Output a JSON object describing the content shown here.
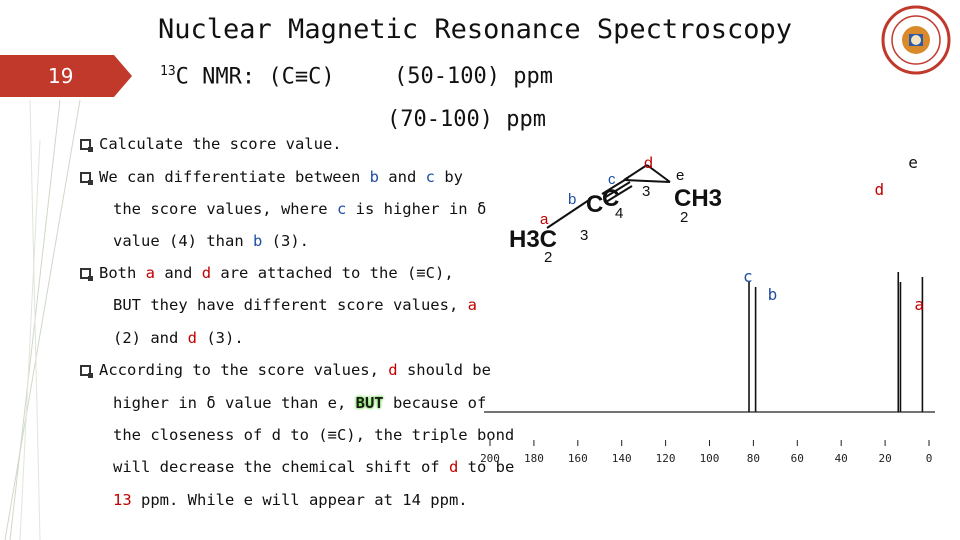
{
  "title": "Nuclear Magnetic Resonance Spectroscopy",
  "slide_number": "19",
  "subtitle": {
    "sup": "13",
    "main": "C NMR: (C≡C)",
    "range1": "(50-100) ppm",
    "range2": "(70-100) ppm"
  },
  "bullets": [
    {
      "text": "Calculate the score value."
    },
    {
      "parts": [
        "We can differentiate between ",
        "b",
        " and ",
        "c",
        " by"
      ],
      "line2": [
        "the score values, where ",
        "c",
        " is higher in δ"
      ],
      "line3": [
        "value (4) than ",
        "b",
        " (3)."
      ]
    },
    {
      "parts": [
        "Both ",
        "a",
        " and ",
        "d",
        " are attached to the (≡C),"
      ],
      "line2": [
        "BUT they have different score values, ",
        "a"
      ],
      "line3": [
        "(2) and ",
        "d",
        " (3)."
      ]
    },
    {
      "parts": [
        "According to the score values, ",
        "d",
        " should be"
      ],
      "line2": [
        "higher in δ value than e, ",
        "BUT",
        " because of"
      ],
      "line3": [
        "the closeness of d to (≡C), the triple bond"
      ],
      "line4": [
        "will decrease the chemical shift of ",
        "d",
        " to be"
      ],
      "line5": [
        "13",
        " ppm. While e will appear at 14 ppm."
      ]
    }
  ],
  "structure": {
    "labels": {
      "a": "a",
      "b": "b",
      "c": "c",
      "d": "d",
      "e": "e"
    },
    "scores": {
      "a": "2",
      "b": "3",
      "c": "4",
      "d": "3",
      "e": "2"
    },
    "groups": {
      "h3c": "H3C",
      "c1": "C",
      "c2": "C",
      "ch2": "C",
      "ch3": "CH3"
    }
  },
  "spectrum_labels": {
    "c": "c",
    "b": "b",
    "a": "a",
    "d": "d",
    "e": "e"
  },
  "chart_data": {
    "type": "line",
    "x_ticks": [
      200,
      180,
      160,
      140,
      120,
      100,
      80,
      60,
      40,
      20,
      0
    ],
    "xlim": [
      200,
      0
    ],
    "peaks": [
      {
        "label": "c",
        "ppm": 82
      },
      {
        "label": "b",
        "ppm": 79
      },
      {
        "label": "d",
        "ppm": 13
      },
      {
        "label": "e",
        "ppm": 14
      },
      {
        "label": "a",
        "ppm": 3
      }
    ]
  },
  "colors": {
    "accent": "#c0392b",
    "red": "#c00000",
    "blue": "#1f4ea3",
    "highlight": "#6cdc4a"
  }
}
